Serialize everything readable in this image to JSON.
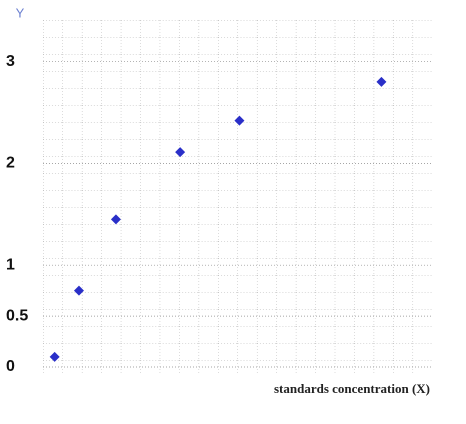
{
  "chart_data": {
    "type": "scatter",
    "y_label": "Y",
    "x_label": "standards concentration (X)",
    "color": "#2a2fc8",
    "x": [
      0.6,
      1.85,
      3.75,
      7.05,
      10.1,
      17.4
    ],
    "values": [
      0.1,
      0.75,
      1.45,
      2.11,
      2.42,
      2.8
    ],
    "xlim": [
      0,
      20
    ],
    "ylim": [
      0,
      3.3
    ],
    "yticks": [
      0,
      0.5,
      1.0,
      2.0,
      3.0
    ],
    "grid": true
  }
}
